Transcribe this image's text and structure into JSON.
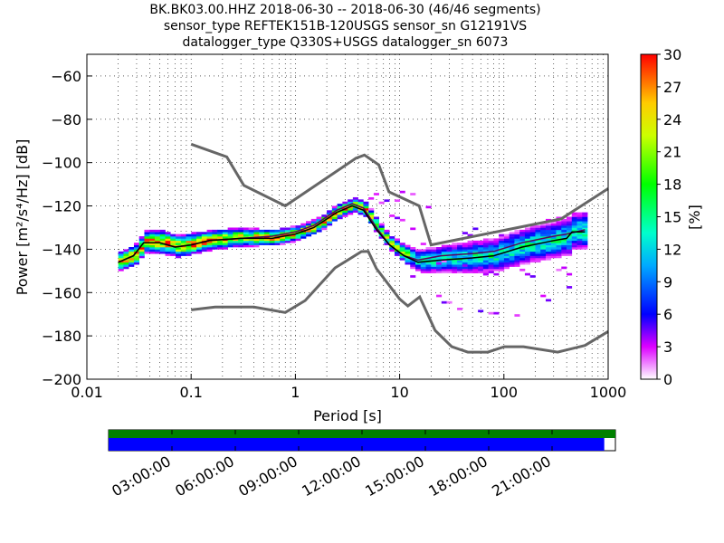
{
  "header": {
    "line1": "BK.BK03.00.HHZ   2018-06-30 -- 2018-06-30  (46/46 segments)",
    "line2": "sensor_type REFTEK151B-120USGS sensor_sn G12191VS",
    "line3": "datalogger_type Q330S+USGS datalogger_sn 6073"
  },
  "chart_data": {
    "type": "heatmap",
    "title": "BK.BK03.00.HHZ   2018-06-30 -- 2018-06-30  (46/46 segments)",
    "xlabel": "Period [s]",
    "ylabel": "Power [m²/s⁴/Hz] [dB]",
    "xscale": "log",
    "xlim": [
      0.01,
      1000
    ],
    "ylim": [
      -200,
      -50
    ],
    "xticks": [
      0.01,
      0.1,
      1,
      10,
      100,
      1000
    ],
    "xtick_labels": [
      "0.01",
      "0.1",
      "1",
      "10",
      "100",
      "1000"
    ],
    "yticks": [
      -60,
      -80,
      -100,
      -120,
      -140,
      -160,
      -180,
      -200
    ],
    "ytick_labels": [
      "−60",
      "−80",
      "−100",
      "−120",
      "−140",
      "−160",
      "−180",
      "−200"
    ],
    "grid": true,
    "colorbar": {
      "label": "[%]",
      "range": [
        0,
        30
      ],
      "ticks": [
        "0",
        "3",
        "6",
        "9",
        "12",
        "15",
        "18",
        "21",
        "24",
        "27",
        "30"
      ]
    },
    "noise_models": {
      "high": [
        [
          0.1,
          -91.5
        ],
        [
          0.22,
          -97.4
        ],
        [
          0.32,
          -110.5
        ],
        [
          0.8,
          -120
        ],
        [
          3.8,
          -98
        ],
        [
          4.6,
          -96.5
        ],
        [
          6.3,
          -101
        ],
        [
          7.9,
          -113.5
        ],
        [
          15.4,
          -120
        ],
        [
          20,
          -138
        ],
        [
          354,
          -126
        ],
        [
          1000,
          -112
        ]
      ],
      "low": [
        [
          0.1,
          -168
        ],
        [
          0.17,
          -166.7
        ],
        [
          0.4,
          -166.7
        ],
        [
          0.8,
          -169.2
        ],
        [
          1.24,
          -163.7
        ],
        [
          2.4,
          -148.6
        ],
        [
          4.3,
          -141.1
        ],
        [
          5,
          -141
        ],
        [
          6,
          -149
        ],
        [
          10,
          -163
        ],
        [
          12,
          -166.2
        ],
        [
          15.6,
          -162
        ],
        [
          21.9,
          -177.5
        ],
        [
          31.6,
          -185
        ],
        [
          45,
          -187.5
        ],
        [
          70,
          -187.5
        ],
        [
          101,
          -185
        ],
        [
          154,
          -185
        ],
        [
          328,
          -187.5
        ],
        [
          600,
          -184.4
        ],
        [
          1000,
          -178
        ]
      ]
    },
    "mode_curve": [
      [
        0.02,
        -146
      ],
      [
        0.028,
        -143
      ],
      [
        0.035,
        -137
      ],
      [
        0.05,
        -137
      ],
      [
        0.07,
        -139
      ],
      [
        0.1,
        -138
      ],
      [
        0.15,
        -136
      ],
      [
        0.3,
        -135
      ],
      [
        0.6,
        -135
      ],
      [
        1,
        -133
      ],
      [
        1.5,
        -130
      ],
      [
        2.5,
        -123
      ],
      [
        3.5,
        -120
      ],
      [
        4.5,
        -122
      ],
      [
        6,
        -131
      ],
      [
        8,
        -138
      ],
      [
        11,
        -143
      ],
      [
        15,
        -146
      ],
      [
        25,
        -145
      ],
      [
        50,
        -144
      ],
      [
        80,
        -143
      ],
      [
        150,
        -139
      ],
      [
        300,
        -136
      ],
      [
        400,
        -135
      ],
      [
        450,
        -132
      ],
      [
        600,
        -132
      ]
    ],
    "mean_curve": [
      [
        0.02,
        -146
      ],
      [
        0.028,
        -143
      ],
      [
        0.035,
        -137
      ],
      [
        0.05,
        -137
      ],
      [
        0.07,
        -139
      ],
      [
        0.1,
        -138
      ],
      [
        0.15,
        -136
      ],
      [
        0.3,
        -135
      ],
      [
        0.6,
        -134
      ],
      [
        1,
        -132
      ],
      [
        1.5,
        -129
      ],
      [
        2.5,
        -122
      ],
      [
        3.5,
        -119
      ],
      [
        4.5,
        -121
      ],
      [
        6,
        -130
      ],
      [
        8,
        -138
      ],
      [
        11,
        -143
      ],
      [
        15,
        -145
      ],
      [
        25,
        -143
      ],
      [
        50,
        -142
      ],
      [
        80,
        -141
      ],
      [
        150,
        -137
      ],
      [
        300,
        -134
      ],
      [
        400,
        -133
      ],
      [
        600,
        -131
      ]
    ],
    "pdf_band_halfwidth_db": [
      [
        0.02,
        4
      ],
      [
        0.05,
        5
      ],
      [
        0.2,
        4
      ],
      [
        1,
        3
      ],
      [
        3,
        3
      ],
      [
        8,
        3
      ],
      [
        15,
        5
      ],
      [
        50,
        7
      ],
      [
        200,
        8
      ],
      [
        600,
        8
      ]
    ],
    "outlier_branches": [
      [
        [
          5,
          -116
        ],
        [
          8,
          -118
        ],
        [
          12,
          -113
        ],
        [
          20,
          -125
        ],
        [
          40,
          -132
        ],
        [
          100,
          -136
        ],
        [
          300,
          -127
        ],
        [
          600,
          -125
        ]
      ],
      [
        [
          7,
          -126
        ],
        [
          12,
          -127
        ],
        [
          20,
          -145
        ],
        [
          40,
          -150
        ],
        [
          100,
          -153
        ],
        [
          300,
          -150
        ],
        [
          600,
          -150
        ]
      ],
      [
        [
          12,
          -150
        ],
        [
          20,
          -160
        ],
        [
          40,
          -168
        ],
        [
          80,
          -172
        ],
        [
          150,
          -168
        ],
        [
          300,
          -160
        ],
        [
          400,
          -158
        ]
      ]
    ]
  },
  "timeline": {
    "labels": [
      "03:00:00",
      "06:00:00",
      "09:00:00",
      "12:00:00",
      "15:00:00",
      "18:00:00",
      "21:00:00"
    ],
    "coverage_fraction": 0.978,
    "colors": {
      "available": "#008000",
      "used": "#0000ff"
    }
  }
}
